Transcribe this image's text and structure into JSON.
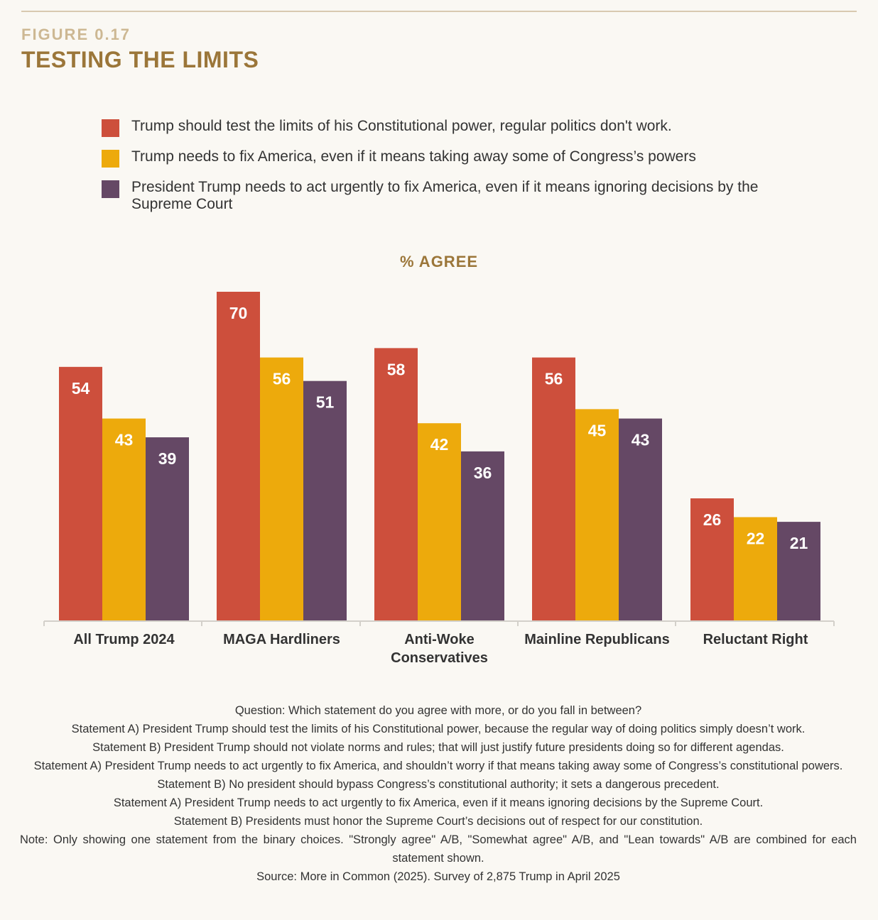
{
  "header": {
    "figure_label": "FIGURE 0.17",
    "title": "TESTING THE LIMITS"
  },
  "colors": {
    "red": "#cd4f3c",
    "yellow": "#edaa0c",
    "purple": "#654865",
    "accent": "#9b7639",
    "axis": "#d3d0ca"
  },
  "chart_data": {
    "type": "bar",
    "title": "% AGREE",
    "categories": [
      "All Trump 2024",
      "MAGA Hardliners",
      "Anti-Woke Conservatives",
      "Mainline Republicans",
      "Reluctant Right"
    ],
    "category_lines": [
      [
        "All Trump 2024"
      ],
      [
        "MAGA Hardliners"
      ],
      [
        "Anti-Woke",
        "Conservatives"
      ],
      [
        "Mainline Republicans"
      ],
      [
        "Reluctant Right"
      ]
    ],
    "series": [
      {
        "name": "Trump should test the limits of his Constitutional power, regular politics don't work.",
        "color": "#cd4f3c",
        "values": [
          54,
          70,
          58,
          56,
          26
        ]
      },
      {
        "name": "Trump needs to fix America, even if it means taking away some of Congress’s powers",
        "color": "#edaa0c",
        "values": [
          43,
          56,
          42,
          45,
          22
        ]
      },
      {
        "name": "President Trump needs to act urgently to fix America, even if it means ignoring decisions by the Supreme Court",
        "color": "#654865",
        "values": [
          39,
          51,
          36,
          43,
          21
        ]
      }
    ],
    "ylim": [
      0,
      70
    ],
    "grid": false,
    "legend_position": "top"
  },
  "notes": [
    "Question: Which statement do you agree with more, or do you fall in between?",
    "Statement A) President Trump should test the limits of his Constitutional power, because the regular way of doing  politics simply doesn’t work.",
    "Statement B) President Trump should not violate norms and rules; that will just justify future presidents doing so for different agendas.",
    "Statement A) President Trump needs to act urgently to fix America, and shouldn’t worry if that means taking away some of Congress’s constitutional powers.",
    "Statement B) No president should bypass Congress’s constitutional authority; it sets a dangerous precedent.",
    "Statement A) President Trump needs to act urgently to fix America, even if it means ignoring decisions by the Supreme Court.",
    "Statement B) Presidents must honor the Supreme Court’s decisions out of respect for our constitution.",
    "Note: Only showing one statement from the binary choices. \"Strongly agree\" A/B, \"Somewhat agree\" A/B, and \"Lean towards\" A/B are combined for each statement shown.",
    "Source: More in Common (2025). Survey of 2,875 Trump in April 2025"
  ]
}
